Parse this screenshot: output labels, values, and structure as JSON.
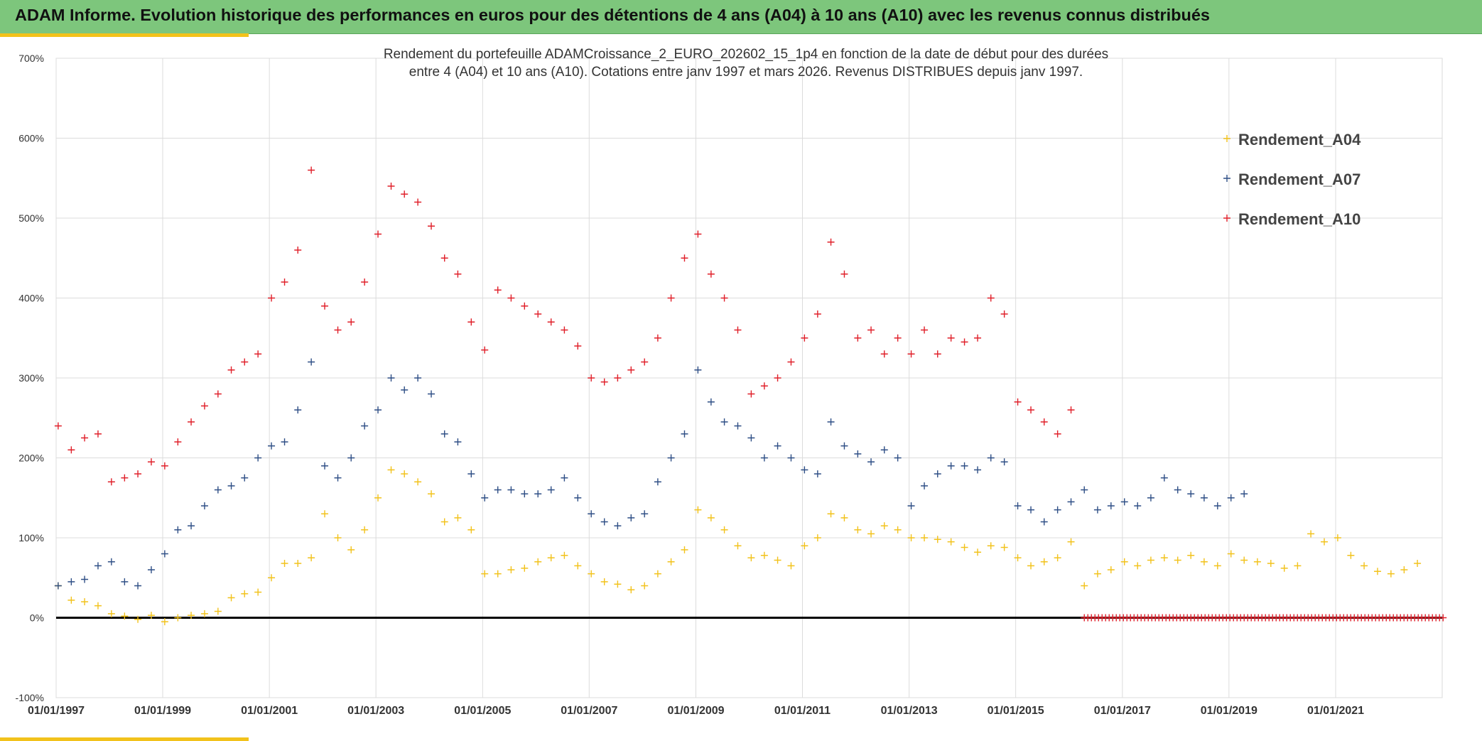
{
  "header": {
    "title": "ADAM Informe. Evolution historique des performances en euros pour des détentions de 4 ans (A04) à 10 ans (A10) avec les revenus connus distribués"
  },
  "colors": {
    "header_bg": "#7dc67c",
    "accent": "#f2c21b",
    "A04": "#f2c21b",
    "A07": "#2f4f86",
    "A10": "#e0202a"
  },
  "chart_data": {
    "type": "scatter",
    "title_lines": [
      "Rendement du portefeuille ADAMCroissance_2_EURO_202602_15_1p4  en fonction de la date de début pour des durées",
      "entre 4 (A04) et 10 ans (A10). Cotations entre janv 1997 et mars 2026. Revenus DISTRIBUES depuis janv 1997."
    ],
    "marker": "+",
    "ylim": [
      -100,
      700
    ],
    "ytick_labels": [
      "700%",
      "600%",
      "500%",
      "400%",
      "300%",
      "200%",
      "100%",
      "0%",
      "-100%"
    ],
    "xlim": [
      "1997-01-01",
      "2023-01-01"
    ],
    "xtick_labels": [
      "01/01/1997",
      "01/01/1999",
      "01/01/2001",
      "01/01/2003",
      "01/01/2005",
      "01/01/2007",
      "01/01/2009",
      "01/01/2011",
      "01/01/2013",
      "01/01/2015",
      "01/01/2017",
      "01/01/2019",
      "01/01/2021"
    ],
    "grid": true,
    "zero_line": true,
    "legend_position": "top-right",
    "series": [
      {
        "name": "Rendement_A04",
        "color": "#f2c21b",
        "points": [
          [
            "1997-01",
            40
          ],
          [
            "1997-04",
            22
          ],
          [
            "1997-07",
            20
          ],
          [
            "1997-10",
            15
          ],
          [
            "1998-01",
            5
          ],
          [
            "1998-04",
            2
          ],
          [
            "1998-07",
            -2
          ],
          [
            "1998-10",
            3
          ],
          [
            "1999-01",
            -5
          ],
          [
            "1999-04",
            0
          ],
          [
            "1999-07",
            3
          ],
          [
            "1999-10",
            5
          ],
          [
            "2000-01",
            8
          ],
          [
            "2000-04",
            25
          ],
          [
            "2000-07",
            30
          ],
          [
            "2000-10",
            32
          ],
          [
            "2001-01",
            50
          ],
          [
            "2001-04",
            68
          ],
          [
            "2001-07",
            68
          ],
          [
            "2001-10",
            75
          ],
          [
            "2002-01",
            130
          ],
          [
            "2002-04",
            100
          ],
          [
            "2002-07",
            85
          ],
          [
            "2002-10",
            110
          ],
          [
            "2003-01",
            150
          ],
          [
            "2003-04",
            185
          ],
          [
            "2003-07",
            180
          ],
          [
            "2003-10",
            170
          ],
          [
            "2004-01",
            155
          ],
          [
            "2004-04",
            120
          ],
          [
            "2004-07",
            125
          ],
          [
            "2004-10",
            110
          ],
          [
            "2005-01",
            55
          ],
          [
            "2005-04",
            55
          ],
          [
            "2005-07",
            60
          ],
          [
            "2005-10",
            62
          ],
          [
            "2006-01",
            70
          ],
          [
            "2006-04",
            75
          ],
          [
            "2006-07",
            78
          ],
          [
            "2006-10",
            65
          ],
          [
            "2007-01",
            55
          ],
          [
            "2007-04",
            45
          ],
          [
            "2007-07",
            42
          ],
          [
            "2007-10",
            35
          ],
          [
            "2008-01",
            40
          ],
          [
            "2008-04",
            55
          ],
          [
            "2008-07",
            70
          ],
          [
            "2008-10",
            85
          ],
          [
            "2009-01",
            135
          ],
          [
            "2009-04",
            125
          ],
          [
            "2009-07",
            110
          ],
          [
            "2009-10",
            90
          ],
          [
            "2010-01",
            75
          ],
          [
            "2010-04",
            78
          ],
          [
            "2010-07",
            72
          ],
          [
            "2010-10",
            65
          ],
          [
            "2011-01",
            90
          ],
          [
            "2011-04",
            100
          ],
          [
            "2011-07",
            130
          ],
          [
            "2011-10",
            125
          ],
          [
            "2012-01",
            110
          ],
          [
            "2012-04",
            105
          ],
          [
            "2012-07",
            115
          ],
          [
            "2012-10",
            110
          ],
          [
            "2013-01",
            100
          ],
          [
            "2013-04",
            100
          ],
          [
            "2013-07",
            98
          ],
          [
            "2013-10",
            95
          ],
          [
            "2014-01",
            88
          ],
          [
            "2014-04",
            82
          ],
          [
            "2014-07",
            90
          ],
          [
            "2014-10",
            88
          ],
          [
            "2015-01",
            75
          ],
          [
            "2015-04",
            65
          ],
          [
            "2015-07",
            70
          ],
          [
            "2015-10",
            75
          ],
          [
            "2016-01",
            95
          ],
          [
            "2016-04",
            40
          ],
          [
            "2016-07",
            55
          ],
          [
            "2016-10",
            60
          ],
          [
            "2017-01",
            70
          ],
          [
            "2017-04",
            65
          ],
          [
            "2017-07",
            72
          ],
          [
            "2017-10",
            75
          ],
          [
            "2018-01",
            72
          ],
          [
            "2018-04",
            78
          ],
          [
            "2018-07",
            70
          ],
          [
            "2018-10",
            65
          ],
          [
            "2019-01",
            80
          ],
          [
            "2019-04",
            72
          ],
          [
            "2019-07",
            70
          ],
          [
            "2019-10",
            68
          ],
          [
            "2020-01",
            62
          ],
          [
            "2020-04",
            65
          ],
          [
            "2020-07",
            105
          ],
          [
            "2020-10",
            95
          ],
          [
            "2021-01",
            100
          ],
          [
            "2021-04",
            78
          ],
          [
            "2021-07",
            65
          ],
          [
            "2021-10",
            58
          ],
          [
            "2022-01",
            55
          ],
          [
            "2022-04",
            60
          ],
          [
            "2022-07",
            68
          ]
        ]
      },
      {
        "name": "Rendement_A07",
        "color": "#2f4f86",
        "points": [
          [
            "1997-01",
            40
          ],
          [
            "1997-04",
            45
          ],
          [
            "1997-07",
            48
          ],
          [
            "1997-10",
            65
          ],
          [
            "1998-01",
            70
          ],
          [
            "1998-04",
            45
          ],
          [
            "1998-07",
            40
          ],
          [
            "1998-10",
            60
          ],
          [
            "1999-01",
            80
          ],
          [
            "1999-04",
            110
          ],
          [
            "1999-07",
            115
          ],
          [
            "1999-10",
            140
          ],
          [
            "2000-01",
            160
          ],
          [
            "2000-04",
            165
          ],
          [
            "2000-07",
            175
          ],
          [
            "2000-10",
            200
          ],
          [
            "2001-01",
            215
          ],
          [
            "2001-04",
            220
          ],
          [
            "2001-07",
            260
          ],
          [
            "2001-10",
            320
          ],
          [
            "2002-01",
            190
          ],
          [
            "2002-04",
            175
          ],
          [
            "2002-07",
            200
          ],
          [
            "2002-10",
            240
          ],
          [
            "2003-01",
            260
          ],
          [
            "2003-04",
            300
          ],
          [
            "2003-07",
            285
          ],
          [
            "2003-10",
            300
          ],
          [
            "2004-01",
            280
          ],
          [
            "2004-04",
            230
          ],
          [
            "2004-07",
            220
          ],
          [
            "2004-10",
            180
          ],
          [
            "2005-01",
            150
          ],
          [
            "2005-04",
            160
          ],
          [
            "2005-07",
            160
          ],
          [
            "2005-10",
            155
          ],
          [
            "2006-01",
            155
          ],
          [
            "2006-04",
            160
          ],
          [
            "2006-07",
            175
          ],
          [
            "2006-10",
            150
          ],
          [
            "2007-01",
            130
          ],
          [
            "2007-04",
            120
          ],
          [
            "2007-07",
            115
          ],
          [
            "2007-10",
            125
          ],
          [
            "2008-01",
            130
          ],
          [
            "2008-04",
            170
          ],
          [
            "2008-07",
            200
          ],
          [
            "2008-10",
            230
          ],
          [
            "2009-01",
            310
          ],
          [
            "2009-04",
            270
          ],
          [
            "2009-07",
            245
          ],
          [
            "2009-10",
            240
          ],
          [
            "2010-01",
            225
          ],
          [
            "2010-04",
            200
          ],
          [
            "2010-07",
            215
          ],
          [
            "2010-10",
            200
          ],
          [
            "2011-01",
            185
          ],
          [
            "2011-04",
            180
          ],
          [
            "2011-07",
            245
          ],
          [
            "2011-10",
            215
          ],
          [
            "2012-01",
            205
          ],
          [
            "2012-04",
            195
          ],
          [
            "2012-07",
            210
          ],
          [
            "2012-10",
            200
          ],
          [
            "2013-01",
            140
          ],
          [
            "2013-04",
            165
          ],
          [
            "2013-07",
            180
          ],
          [
            "2013-10",
            190
          ],
          [
            "2014-01",
            190
          ],
          [
            "2014-04",
            185
          ],
          [
            "2014-07",
            200
          ],
          [
            "2014-10",
            195
          ],
          [
            "2015-01",
            140
          ],
          [
            "2015-04",
            135
          ],
          [
            "2015-07",
            120
          ],
          [
            "2015-10",
            135
          ],
          [
            "2016-01",
            145
          ],
          [
            "2016-04",
            160
          ],
          [
            "2016-07",
            135
          ],
          [
            "2016-10",
            140
          ],
          [
            "2017-01",
            145
          ],
          [
            "2017-04",
            140
          ],
          [
            "2017-07",
            150
          ],
          [
            "2017-10",
            175
          ],
          [
            "2018-01",
            160
          ],
          [
            "2018-04",
            155
          ],
          [
            "2018-07",
            150
          ],
          [
            "2018-10",
            140
          ],
          [
            "2019-01",
            150
          ],
          [
            "2019-04",
            155
          ]
        ]
      },
      {
        "name": "Rendement_A10",
        "color": "#e0202a",
        "points": [
          [
            "1997-01",
            240
          ],
          [
            "1997-04",
            210
          ],
          [
            "1997-07",
            225
          ],
          [
            "1997-10",
            230
          ],
          [
            "1998-01",
            170
          ],
          [
            "1998-04",
            175
          ],
          [
            "1998-07",
            180
          ],
          [
            "1998-10",
            195
          ],
          [
            "1999-01",
            190
          ],
          [
            "1999-04",
            220
          ],
          [
            "1999-07",
            245
          ],
          [
            "1999-10",
            265
          ],
          [
            "2000-01",
            280
          ],
          [
            "2000-04",
            310
          ],
          [
            "2000-07",
            320
          ],
          [
            "2000-10",
            330
          ],
          [
            "2001-01",
            400
          ],
          [
            "2001-04",
            420
          ],
          [
            "2001-07",
            460
          ],
          [
            "2001-10",
            560
          ],
          [
            "2002-01",
            390
          ],
          [
            "2002-04",
            360
          ],
          [
            "2002-07",
            370
          ],
          [
            "2002-10",
            420
          ],
          [
            "2003-01",
            480
          ],
          [
            "2003-04",
            540
          ],
          [
            "2003-07",
            530
          ],
          [
            "2003-10",
            520
          ],
          [
            "2004-01",
            490
          ],
          [
            "2004-04",
            450
          ],
          [
            "2004-07",
            430
          ],
          [
            "2004-10",
            370
          ],
          [
            "2005-01",
            335
          ],
          [
            "2005-04",
            410
          ],
          [
            "2005-07",
            400
          ],
          [
            "2005-10",
            390
          ],
          [
            "2006-01",
            380
          ],
          [
            "2006-04",
            370
          ],
          [
            "2006-07",
            360
          ],
          [
            "2006-10",
            340
          ],
          [
            "2007-01",
            300
          ],
          [
            "2007-04",
            295
          ],
          [
            "2007-07",
            300
          ],
          [
            "2007-10",
            310
          ],
          [
            "2008-01",
            320
          ],
          [
            "2008-04",
            350
          ],
          [
            "2008-07",
            400
          ],
          [
            "2008-10",
            450
          ],
          [
            "2009-01",
            480
          ],
          [
            "2009-04",
            430
          ],
          [
            "2009-07",
            400
          ],
          [
            "2009-10",
            360
          ],
          [
            "2010-01",
            280
          ],
          [
            "2010-04",
            290
          ],
          [
            "2010-07",
            300
          ],
          [
            "2010-10",
            320
          ],
          [
            "2011-01",
            350
          ],
          [
            "2011-04",
            380
          ],
          [
            "2011-07",
            470
          ],
          [
            "2011-10",
            430
          ],
          [
            "2012-01",
            350
          ],
          [
            "2012-04",
            360
          ],
          [
            "2012-07",
            330
          ],
          [
            "2012-10",
            350
          ],
          [
            "2013-01",
            330
          ],
          [
            "2013-04",
            360
          ],
          [
            "2013-07",
            330
          ],
          [
            "2013-10",
            350
          ],
          [
            "2014-01",
            345
          ],
          [
            "2014-04",
            350
          ],
          [
            "2014-07",
            400
          ],
          [
            "2014-10",
            380
          ],
          [
            "2015-01",
            270
          ],
          [
            "2015-04",
            260
          ],
          [
            "2015-07",
            245
          ],
          [
            "2015-10",
            230
          ],
          [
            "2016-01",
            260
          ]
        ]
      }
    ],
    "zero_markers": {
      "series": "Rendement_A10",
      "from": "2016-04",
      "to": "2023-01",
      "value": 0
    }
  }
}
